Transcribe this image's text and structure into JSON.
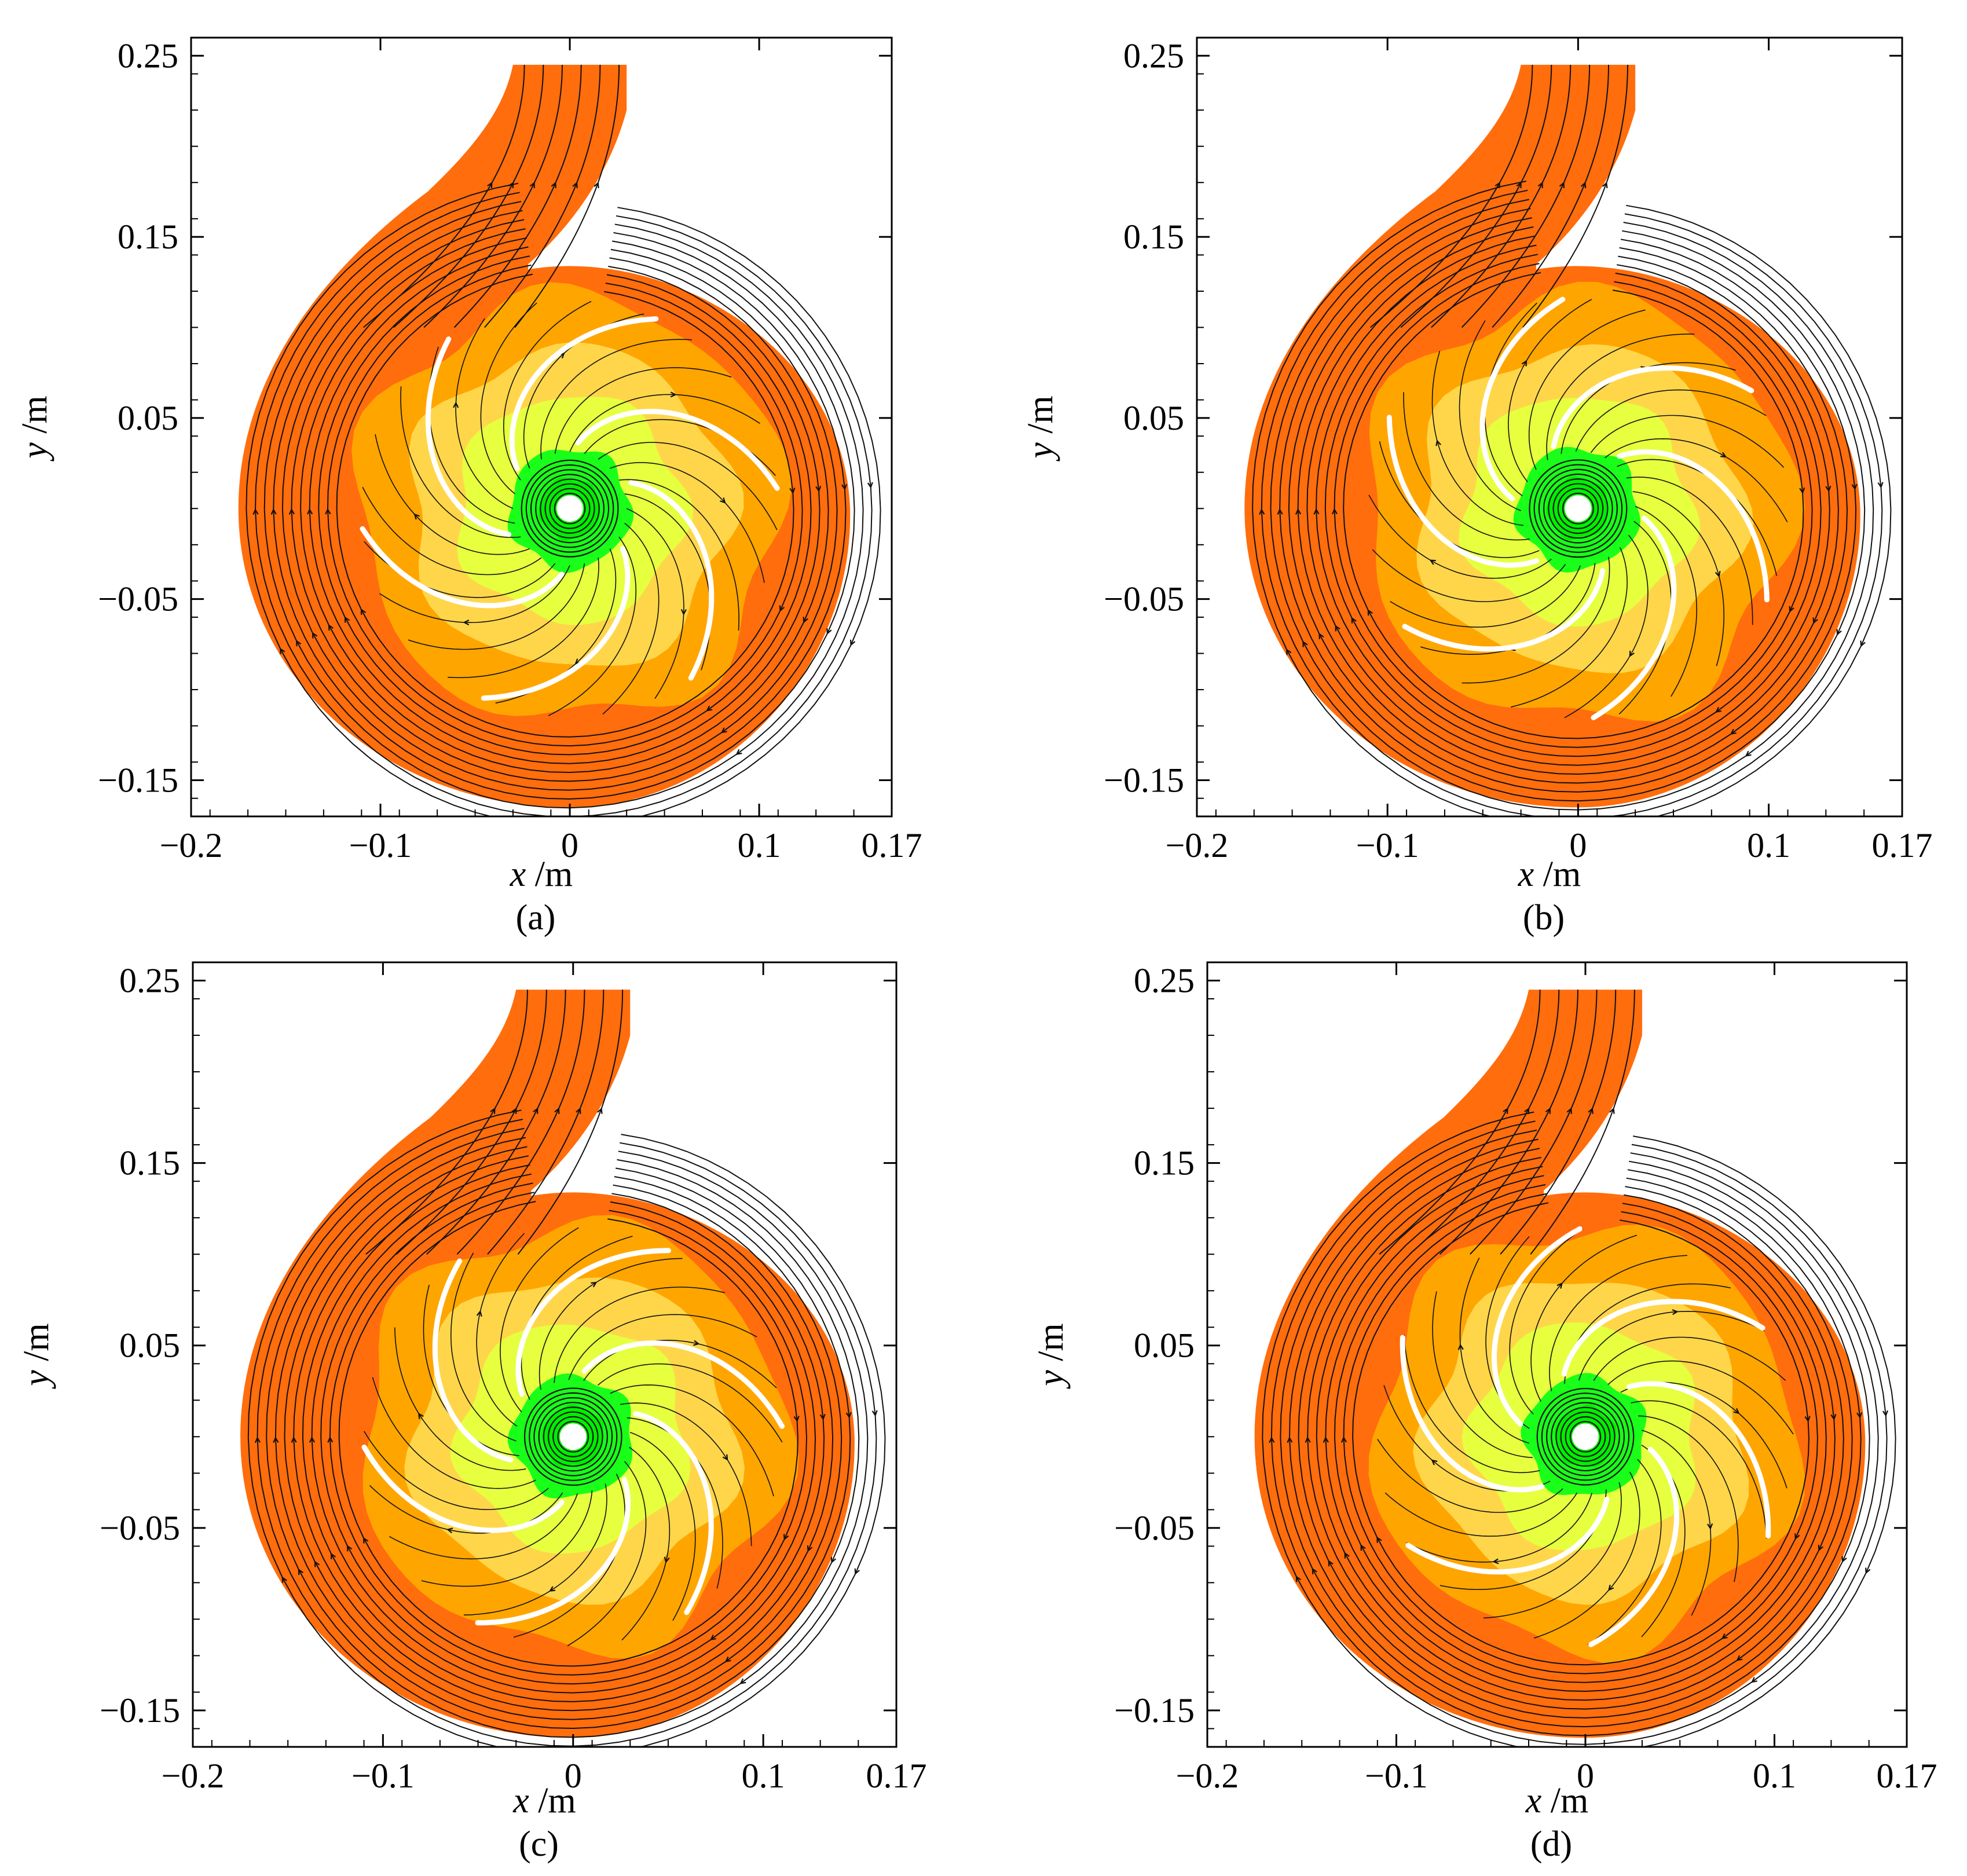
{
  "figure": {
    "description_type": "pump volute streamline contour panels",
    "colors": {
      "volute": "#ff6d0d",
      "outer_impeller": "#ffa500",
      "mid_impeller": "#ffd64a",
      "inner_yellow": "#e6ff3f",
      "core_green": "#19ff19",
      "hub_green": "#00ef00",
      "blade": "#ffffff",
      "streamline": "#111111",
      "axis": "#000000"
    },
    "panels": [
      {
        "id": "a",
        "caption": "(a)",
        "xlabel_var": "x",
        "xlabel_unit": " /m",
        "ylabel_var": "y",
        "ylabel_unit": " /m",
        "x_ticks": [
          "−0.2",
          "−0.1",
          "0",
          "0.1",
          "0.17"
        ],
        "y_ticks": [
          "0.25",
          "0.15",
          "0.05",
          "−0.05",
          "−0.15"
        ],
        "x_tick_values": [
          -0.2,
          -0.1,
          0,
          0.1,
          0.17
        ],
        "y_tick_values": [
          0.25,
          0.15,
          0.05,
          -0.05,
          -0.15
        ],
        "xlim": [
          -0.2,
          0.17
        ],
        "ylim": [
          -0.17,
          0.26
        ]
      },
      {
        "id": "b",
        "caption": "(b)",
        "xlabel_var": "x",
        "xlabel_unit": " /m",
        "ylabel_var": "y",
        "ylabel_unit": " /m",
        "x_ticks": [
          "−0.2",
          "−0.1",
          "0",
          "0.1",
          "0.17"
        ],
        "y_ticks": [
          "0.25",
          "0.15",
          "0.05",
          "−0.05",
          "−0.15"
        ],
        "x_tick_values": [
          -0.2,
          -0.1,
          0,
          0.1,
          0.17
        ],
        "y_tick_values": [
          0.25,
          0.15,
          0.05,
          -0.05,
          -0.15
        ],
        "xlim": [
          -0.2,
          0.17
        ],
        "ylim": [
          -0.17,
          0.26
        ]
      },
      {
        "id": "c",
        "caption": "(c)",
        "xlabel_var": "x",
        "xlabel_unit": " /m",
        "ylabel_var": "y",
        "ylabel_unit": " /m",
        "x_ticks": [
          "−0.2",
          "−0.1",
          "0",
          "0.1",
          "0.17"
        ],
        "y_ticks": [
          "0.25",
          "0.15",
          "0.05",
          "−0.05",
          "−0.15"
        ],
        "x_tick_values": [
          -0.2,
          -0.1,
          0,
          0.1,
          0.17
        ],
        "y_tick_values": [
          0.25,
          0.15,
          0.05,
          -0.05,
          -0.15
        ],
        "xlim": [
          -0.2,
          0.17
        ],
        "ylim": [
          -0.17,
          0.26
        ]
      },
      {
        "id": "d",
        "caption": "(d)",
        "xlabel_var": "x",
        "xlabel_unit": " /m",
        "ylabel_var": "y",
        "ylabel_unit": " /m",
        "x_ticks": [
          "−0.2",
          "−0.1",
          "0",
          "0.1",
          "0.17"
        ],
        "y_ticks": [
          "0.25",
          "0.15",
          "0.05",
          "−0.05",
          "−0.15"
        ],
        "x_tick_values": [
          -0.2,
          -0.1,
          0,
          0.1,
          0.17
        ],
        "y_tick_values": [
          0.25,
          0.15,
          0.05,
          -0.05,
          -0.15
        ],
        "xlim": [
          -0.2,
          0.17
        ],
        "ylim": [
          -0.17,
          0.26
        ]
      }
    ]
  }
}
